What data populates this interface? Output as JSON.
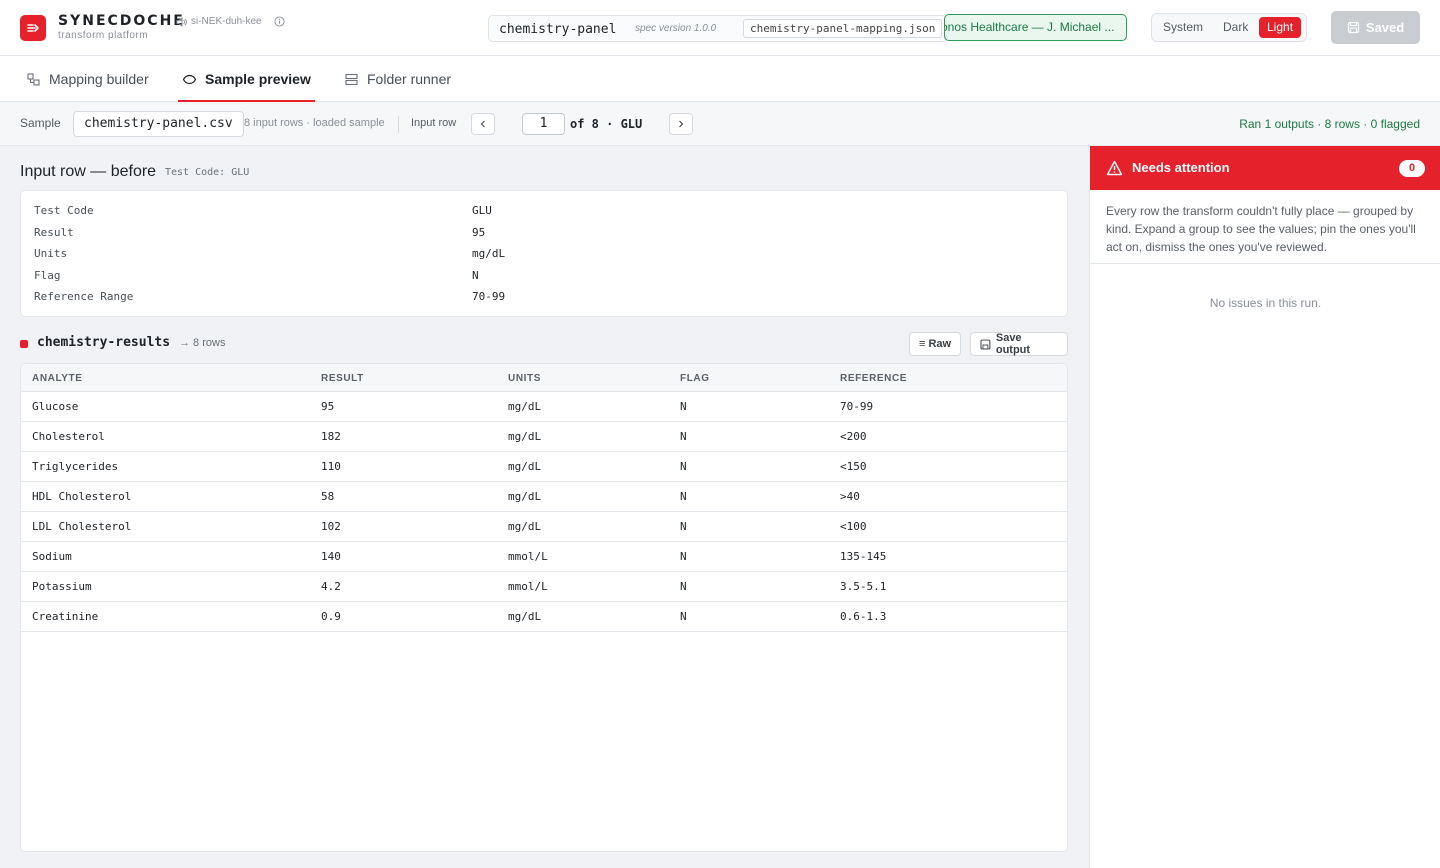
{
  "app": {
    "brand": "SYNECDOCHE",
    "pronunciation": "si-NEK-duh-kee",
    "subtitle": "transform platform"
  },
  "spec": {
    "name": "chemistry-panel",
    "version_label": "spec version 1.0.0",
    "mapping_file": "chemistry-panel-mapping.json",
    "customer": "Kronos Healthcare — J. Michael ..."
  },
  "theme": {
    "options": [
      "System",
      "Dark",
      "Light"
    ],
    "selected": "Light"
  },
  "save_button": {
    "label": "Saved"
  },
  "tabs": [
    {
      "label": "Mapping builder",
      "active": false
    },
    {
      "label": "Sample preview",
      "active": true
    },
    {
      "label": "Folder runner",
      "active": false
    }
  ],
  "toolbar": {
    "sample_label": "Sample",
    "sample_file": "chemistry-panel.csv",
    "sample_note": "8 input rows · loaded sample",
    "input_row_label": "Input row",
    "current_row": "1",
    "row_of": "of 8 · GLU",
    "run_summary": "Ran 1 outputs · 8 rows · 0 flagged"
  },
  "input_row": {
    "title": "Input row — before",
    "subtitle": "Test Code: GLU",
    "fields": [
      {
        "key": "Test Code",
        "value": "GLU"
      },
      {
        "key": "Result",
        "value": "95"
      },
      {
        "key": "Units",
        "value": "mg/dL"
      },
      {
        "key": "Flag",
        "value": "N"
      },
      {
        "key": "Reference Range",
        "value": "70-99"
      }
    ]
  },
  "output": {
    "name": "chemistry-results",
    "row_count": "→ 8 rows",
    "raw_label": "≡ Raw",
    "save_label": "Save output",
    "columns": [
      "ANALYTE",
      "RESULT",
      "UNITS",
      "FLAG",
      "REFERENCE"
    ],
    "rows": [
      [
        "Glucose",
        "95",
        "mg/dL",
        "N",
        "70-99"
      ],
      [
        "Cholesterol",
        "182",
        "mg/dL",
        "N",
        "<200"
      ],
      [
        "Triglycerides",
        "110",
        "mg/dL",
        "N",
        "<150"
      ],
      [
        "HDL Cholesterol",
        "58",
        "mg/dL",
        "N",
        ">40"
      ],
      [
        "LDL Cholesterol",
        "102",
        "mg/dL",
        "N",
        "<100"
      ],
      [
        "Sodium",
        "140",
        "mmol/L",
        "N",
        "135-145"
      ],
      [
        "Potassium",
        "4.2",
        "mmol/L",
        "N",
        "3.5-5.1"
      ],
      [
        "Creatinine",
        "0.9",
        "mg/dL",
        "N",
        "0.6-1.3"
      ]
    ]
  },
  "attention": {
    "title": "Needs attention",
    "count": "0",
    "description": "Every row the transform couldn't fully place — grouped by kind. Expand a group to see the values; pin the ones you'll act on, dismiss the ones you've reviewed.",
    "empty": "No issues in this run."
  },
  "colors": {
    "accent": "#e5212b",
    "success": "#1d7a43"
  }
}
